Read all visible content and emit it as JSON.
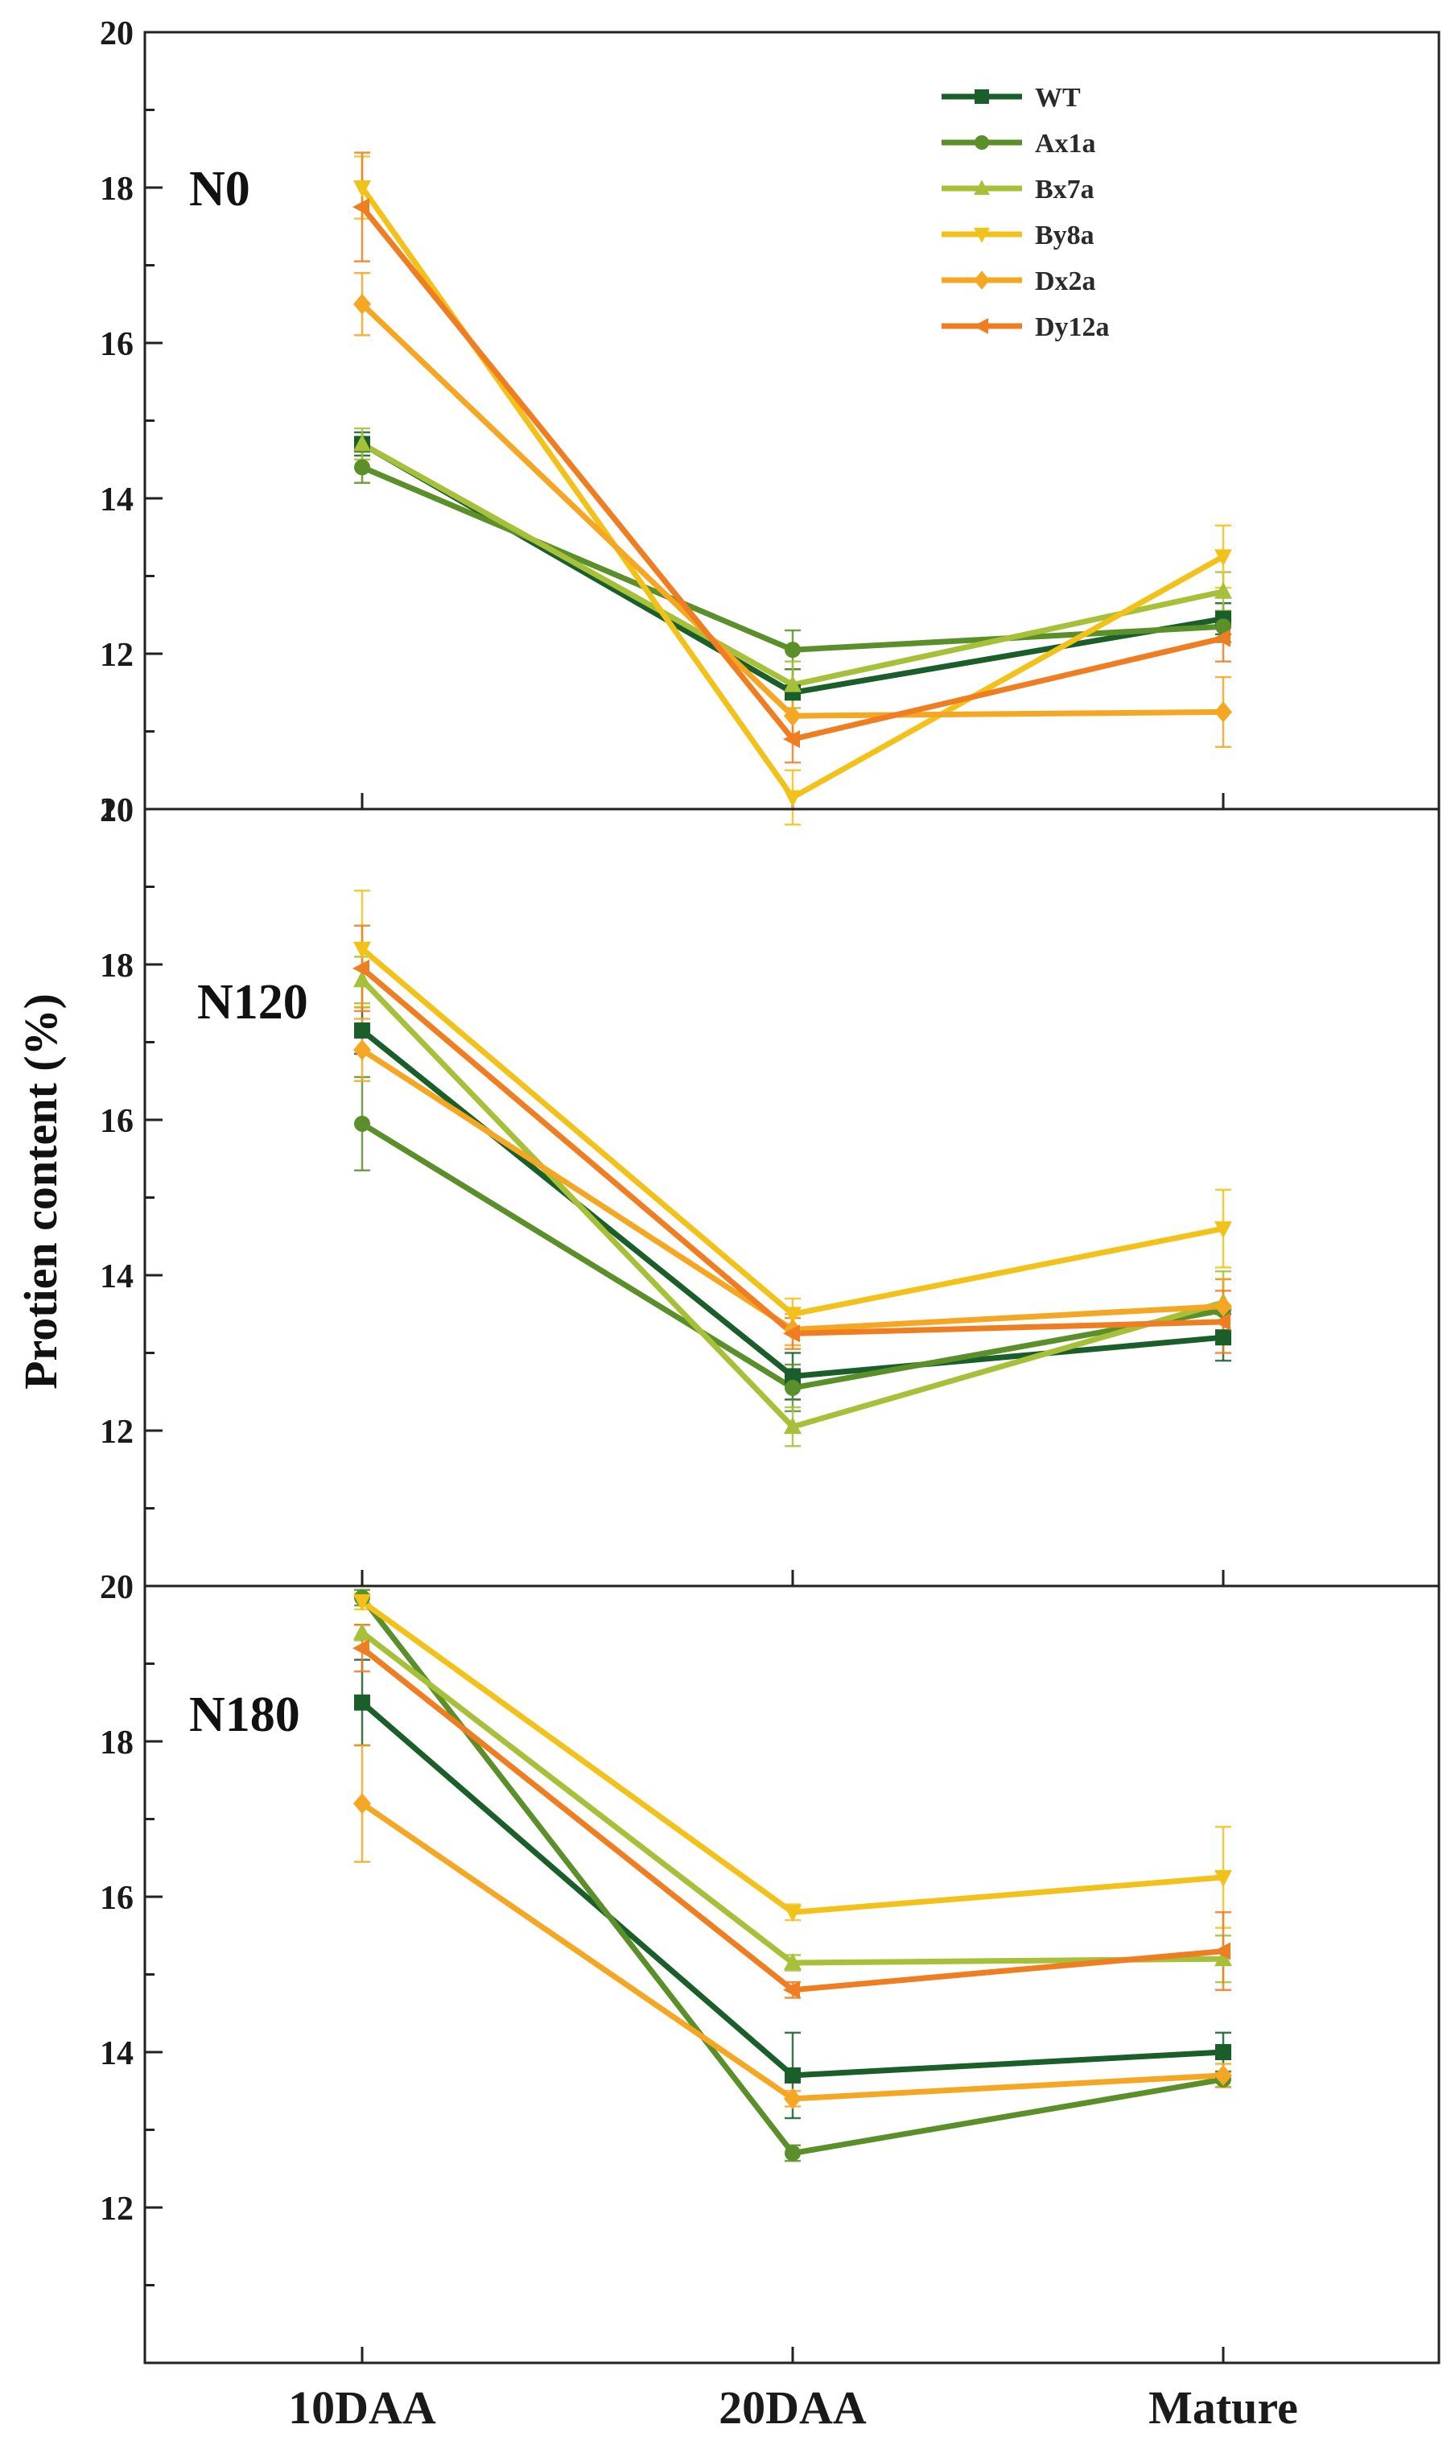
{
  "chart_data": {
    "type": "line",
    "ylabel": "Protien content (%)",
    "categories": [
      "10DAA",
      "20DAA",
      "Mature"
    ],
    "ylim": [
      10,
      20
    ],
    "yticks": [
      "10",
      "12",
      "14",
      "16",
      "18",
      "20"
    ],
    "legend": {
      "placement": "top-right",
      "entries": [
        "WT",
        "Ax1a",
        "Bx7a",
        "By8a",
        "Dx2a",
        "Dy12a"
      ]
    },
    "series_styles": [
      {
        "name": "WT",
        "color": "#1a5e2a",
        "marker": "square"
      },
      {
        "name": "Ax1a",
        "color": "#5a8f2a",
        "marker": "circle"
      },
      {
        "name": "Bx7a",
        "color": "#a6c03a",
        "marker": "triangle-up"
      },
      {
        "name": "By8a",
        "color": "#f2c21b",
        "marker": "triangle-down"
      },
      {
        "name": "Dx2a",
        "color": "#f5a623",
        "marker": "diamond"
      },
      {
        "name": "Dy12a",
        "color": "#ef7d22",
        "marker": "triangle-left"
      }
    ],
    "panels": [
      {
        "label": "N0",
        "series": [
          {
            "name": "WT",
            "values": [
              14.7,
              11.5,
              12.45
            ],
            "errors": [
              0.15,
              0.3,
              0.2
            ]
          },
          {
            "name": "Ax1a",
            "values": [
              14.4,
              12.05,
              12.35
            ],
            "errors": [
              0.2,
              0.25,
              0.2
            ]
          },
          {
            "name": "Bx7a",
            "values": [
              14.7,
              11.6,
              12.8
            ],
            "errors": [
              0.2,
              0.3,
              0.25
            ]
          },
          {
            "name": "By8a",
            "values": [
              18.0,
              10.15,
              13.25
            ],
            "errors": [
              0.4,
              0.35,
              0.4
            ]
          },
          {
            "name": "Dx2a",
            "values": [
              16.5,
              11.2,
              11.25
            ],
            "errors": [
              0.4,
              0.3,
              0.45
            ]
          },
          {
            "name": "Dy12a",
            "values": [
              17.75,
              10.9,
              12.2
            ],
            "errors": [
              0.7,
              0.3,
              0.3
            ]
          }
        ]
      },
      {
        "label": "N120",
        "series": [
          {
            "name": "WT",
            "values": [
              17.15,
              12.7,
              13.2
            ],
            "errors": [
              0.3,
              0.3,
              0.3
            ]
          },
          {
            "name": "Ax1a",
            "values": [
              15.95,
              12.55,
              13.55
            ],
            "errors": [
              0.6,
              0.3,
              0.4
            ]
          },
          {
            "name": "Bx7a",
            "values": [
              17.8,
              12.05,
              13.65
            ],
            "errors": [
              0.3,
              0.25,
              0.4
            ]
          },
          {
            "name": "By8a",
            "values": [
              18.2,
              13.5,
              14.6
            ],
            "errors": [
              0.75,
              0.2,
              0.5
            ]
          },
          {
            "name": "Dx2a",
            "values": [
              16.9,
              13.3,
              13.6
            ],
            "errors": [
              0.4,
              0.2,
              0.35
            ]
          },
          {
            "name": "Dy12a",
            "values": [
              17.95,
              13.25,
              13.4
            ],
            "errors": [
              0.55,
              0.2,
              0.4
            ]
          }
        ]
      },
      {
        "label": "N180",
        "series": [
          {
            "name": "WT",
            "values": [
              18.5,
              13.7,
              14.0
            ],
            "errors": [
              0.55,
              0.55,
              0.25
            ]
          },
          {
            "name": "Ax1a",
            "values": [
              19.85,
              12.7,
              13.65
            ],
            "errors": [
              0.1,
              0.1,
              0.1
            ]
          },
          {
            "name": "Bx7a",
            "values": [
              19.4,
              15.15,
              15.2
            ],
            "errors": [
              0.1,
              0.1,
              0.3
            ]
          },
          {
            "name": "By8a",
            "values": [
              19.8,
              15.8,
              16.25
            ],
            "errors": [
              0.1,
              0.1,
              0.65
            ]
          },
          {
            "name": "Dx2a",
            "values": [
              17.2,
              13.4,
              13.7
            ],
            "errors": [
              0.75,
              0.1,
              0.15
            ]
          },
          {
            "name": "Dy12a",
            "values": [
              19.2,
              14.8,
              15.3
            ],
            "errors": [
              0.3,
              0.1,
              0.5
            ]
          }
        ]
      }
    ]
  }
}
